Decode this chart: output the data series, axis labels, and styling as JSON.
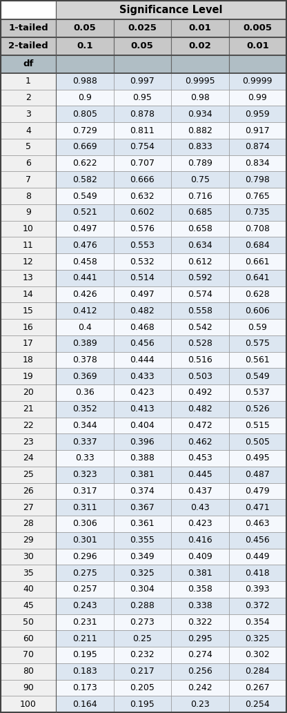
{
  "title": "Significance Level",
  "header1_label": "1-tailed",
  "header2_label": "2-tailed",
  "header3_label": "df",
  "col_headers_1tail": [
    "0.05",
    "0.025",
    "0.01",
    "0.005"
  ],
  "col_headers_2tail": [
    "0.1",
    "0.05",
    "0.02",
    "0.01"
  ],
  "rows": [
    [
      "1",
      "0.988",
      "0.997",
      "0.9995",
      "0.9999"
    ],
    [
      "2",
      "0.9",
      "0.95",
      "0.98",
      "0.99"
    ],
    [
      "3",
      "0.805",
      "0.878",
      "0.934",
      "0.959"
    ],
    [
      "4",
      "0.729",
      "0.811",
      "0.882",
      "0.917"
    ],
    [
      "5",
      "0.669",
      "0.754",
      "0.833",
      "0.874"
    ],
    [
      "6",
      "0.622",
      "0.707",
      "0.789",
      "0.834"
    ],
    [
      "7",
      "0.582",
      "0.666",
      "0.75",
      "0.798"
    ],
    [
      "8",
      "0.549",
      "0.632",
      "0.716",
      "0.765"
    ],
    [
      "9",
      "0.521",
      "0.602",
      "0.685",
      "0.735"
    ],
    [
      "10",
      "0.497",
      "0.576",
      "0.658",
      "0.708"
    ],
    [
      "11",
      "0.476",
      "0.553",
      "0.634",
      "0.684"
    ],
    [
      "12",
      "0.458",
      "0.532",
      "0.612",
      "0.661"
    ],
    [
      "13",
      "0.441",
      "0.514",
      "0.592",
      "0.641"
    ],
    [
      "14",
      "0.426",
      "0.497",
      "0.574",
      "0.628"
    ],
    [
      "15",
      "0.412",
      "0.482",
      "0.558",
      "0.606"
    ],
    [
      "16",
      "0.4",
      "0.468",
      "0.542",
      "0.59"
    ],
    [
      "17",
      "0.389",
      "0.456",
      "0.528",
      "0.575"
    ],
    [
      "18",
      "0.378",
      "0.444",
      "0.516",
      "0.561"
    ],
    [
      "19",
      "0.369",
      "0.433",
      "0.503",
      "0.549"
    ],
    [
      "20",
      "0.36",
      "0.423",
      "0.492",
      "0.537"
    ],
    [
      "21",
      "0.352",
      "0.413",
      "0.482",
      "0.526"
    ],
    [
      "22",
      "0.344",
      "0.404",
      "0.472",
      "0.515"
    ],
    [
      "23",
      "0.337",
      "0.396",
      "0.462",
      "0.505"
    ],
    [
      "24",
      "0.33",
      "0.388",
      "0.453",
      "0.495"
    ],
    [
      "25",
      "0.323",
      "0.381",
      "0.445",
      "0.487"
    ],
    [
      "26",
      "0.317",
      "0.374",
      "0.437",
      "0.479"
    ],
    [
      "27",
      "0.311",
      "0.367",
      "0.43",
      "0.471"
    ],
    [
      "28",
      "0.306",
      "0.361",
      "0.423",
      "0.463"
    ],
    [
      "29",
      "0.301",
      "0.355",
      "0.416",
      "0.456"
    ],
    [
      "30",
      "0.296",
      "0.349",
      "0.409",
      "0.449"
    ],
    [
      "35",
      "0.275",
      "0.325",
      "0.381",
      "0.418"
    ],
    [
      "40",
      "0.257",
      "0.304",
      "0.358",
      "0.393"
    ],
    [
      "45",
      "0.243",
      "0.288",
      "0.338",
      "0.372"
    ],
    [
      "50",
      "0.231",
      "0.273",
      "0.322",
      "0.354"
    ],
    [
      "60",
      "0.211",
      "0.25",
      "0.295",
      "0.325"
    ],
    [
      "70",
      "0.195",
      "0.232",
      "0.274",
      "0.302"
    ],
    [
      "80",
      "0.183",
      "0.217",
      "0.256",
      "0.284"
    ],
    [
      "90",
      "0.173",
      "0.205",
      "0.242",
      "0.267"
    ],
    [
      "100",
      "0.164",
      "0.195",
      "0.23",
      "0.254"
    ]
  ],
  "color_header_bg": "#c8c8c8",
  "color_sig_level_bg": "#d4d4d4",
  "color_row_even": "#dce6f1",
  "color_row_odd": "#f5f8fd",
  "color_df_row_bg": "#b0bec5",
  "color_col0_bg": "#f0f0f0",
  "font_size_title": 10.5,
  "font_size_header": 9.5,
  "font_size_data": 9
}
